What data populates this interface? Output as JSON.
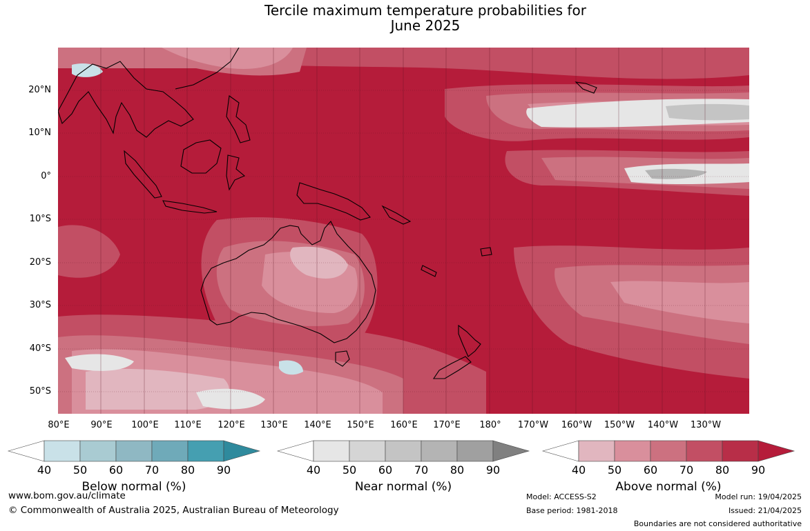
{
  "title_line1": "Tercile maximum temperature probabilities for",
  "title_line2": "June 2025",
  "lat_labels": [
    "20°N",
    "10°N",
    "0°",
    "10°S",
    "20°S",
    "30°S",
    "40°S",
    "50°S"
  ],
  "lon_labels": [
    "80°E",
    "90°E",
    "100°E",
    "110°E",
    "120°E",
    "130°E",
    "140°E",
    "150°E",
    "160°E",
    "170°E",
    "180°",
    "170°W",
    "160°W",
    "150°W",
    "140°W",
    "130°W"
  ],
  "colorbars": [
    {
      "title": "Below normal (%)",
      "ticks": [
        "40",
        "50",
        "60",
        "70",
        "80",
        "90"
      ],
      "colors": [
        "#ffffff",
        "#c9e1e8",
        "#a9cbd2",
        "#8fb8c3",
        "#6faab9",
        "#459fb1",
        "#2f8a9d"
      ]
    },
    {
      "title": "Near normal (%)",
      "ticks": [
        "40",
        "50",
        "60",
        "70",
        "80",
        "90"
      ],
      "colors": [
        "#ffffff",
        "#e6e6e6",
        "#d5d5d5",
        "#c4c4c4",
        "#b4b4b4",
        "#a0a0a0",
        "#808080"
      ]
    },
    {
      "title": "Above normal (%)",
      "ticks": [
        "40",
        "50",
        "60",
        "70",
        "80",
        "90"
      ],
      "colors": [
        "#ffffff",
        "#e1b6bf",
        "#d98f9c",
        "#cc7180",
        "#c24f64",
        "#b82e48",
        "#b51c3a"
      ]
    }
  ],
  "footer": {
    "website": "www.bom.gov.au/climate",
    "copyright": "© Commonwealth of Australia 2025, Australian Bureau of Meteorology",
    "model": "Model: ACCESS-S2",
    "base_period": "Base period: 1981-2018",
    "model_run": "Model run: 19/04/2025",
    "issued": "Issued: 21/04/2025",
    "boundaries": "Boundaries are not considered authoritative"
  }
}
